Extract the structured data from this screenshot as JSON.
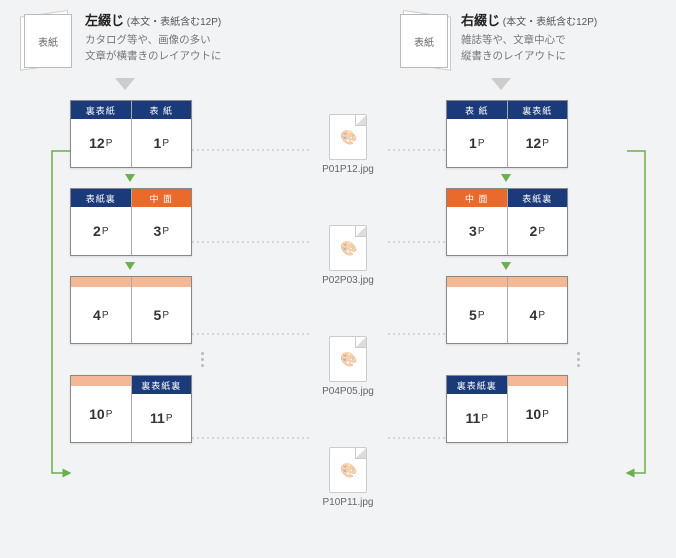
{
  "left": {
    "title": "左綴じ",
    "subtitle": " (本文・表紙含む12P)",
    "desc": "カタログ等や、画像の多い\n文章が横書きのレイアウトに",
    "cover": "表紙",
    "spreads": [
      {
        "l": {
          "tab": "裏表紙",
          "cls": "navy",
          "num": "12"
        },
        "r": {
          "tab": "表 紙",
          "cls": "navy",
          "num": "1"
        }
      },
      {
        "l": {
          "tab": "表紙裏",
          "cls": "navy",
          "num": "2"
        },
        "r": {
          "tab": "中 面",
          "cls": "orange",
          "num": "3"
        }
      },
      {
        "l": {
          "tab": "",
          "cls": "lorange",
          "num": "4"
        },
        "r": {
          "tab": "",
          "cls": "lorange",
          "num": "5"
        }
      },
      {
        "l": {
          "tab": "",
          "cls": "lorange",
          "num": "10"
        },
        "r": {
          "tab": "裏表紙裏",
          "cls": "navy",
          "num": "11"
        }
      }
    ]
  },
  "right": {
    "title": "右綴じ",
    "subtitle": " (本文・表紙含む12P)",
    "desc": "雑誌等や、文章中心で\n縦書きのレイアウトに",
    "cover": "表紙",
    "spreads": [
      {
        "l": {
          "tab": "表 紙",
          "cls": "navy",
          "num": "1"
        },
        "r": {
          "tab": "裏表紙",
          "cls": "navy",
          "num": "12"
        }
      },
      {
        "l": {
          "tab": "中 面",
          "cls": "orange",
          "num": "3"
        },
        "r": {
          "tab": "表紙裏",
          "cls": "navy",
          "num": "2"
        }
      },
      {
        "l": {
          "tab": "",
          "cls": "lorange",
          "num": "5"
        },
        "r": {
          "tab": "",
          "cls": "lorange",
          "num": "4"
        }
      },
      {
        "l": {
          "tab": "裏表紙裏",
          "cls": "navy",
          "num": "11"
        },
        "r": {
          "tab": "",
          "cls": "lorange",
          "num": "10"
        }
      }
    ]
  },
  "files": [
    "P01P12.jpg",
    "P02P03.jpg",
    "P04P05.jpg",
    "P10P11.jpg"
  ],
  "colors": {
    "navy": "#1b3a7a",
    "orange": "#ea6a2c",
    "lorange": "#f4b896",
    "arrow": "#6ab04c",
    "return": "#6ab04c"
  }
}
